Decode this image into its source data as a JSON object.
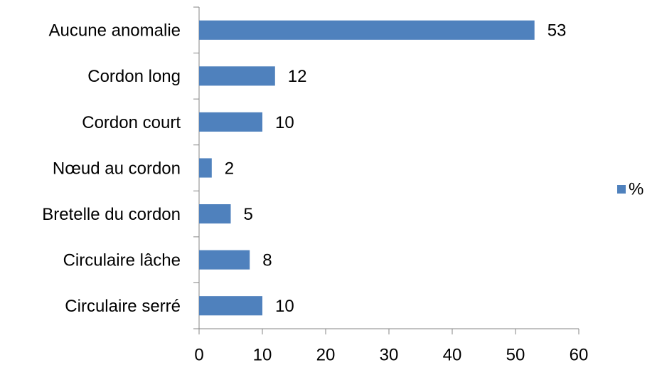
{
  "chart_data": {
    "type": "bar",
    "orientation": "horizontal",
    "categories": [
      "Aucune anomalie",
      "Cordon long",
      "Cordon court",
      "Nœud au cordon",
      "Bretelle du cordon",
      "Circulaire lâche",
      "Circulaire serré"
    ],
    "series": [
      {
        "name": "%",
        "color": "#4f81bd",
        "values": [
          53,
          12,
          10,
          2,
          5,
          8,
          10
        ]
      }
    ],
    "xlim": [
      0,
      60
    ],
    "xticks": [
      0,
      10,
      20,
      30,
      40,
      50,
      60
    ],
    "grid": false,
    "legend": "right"
  }
}
